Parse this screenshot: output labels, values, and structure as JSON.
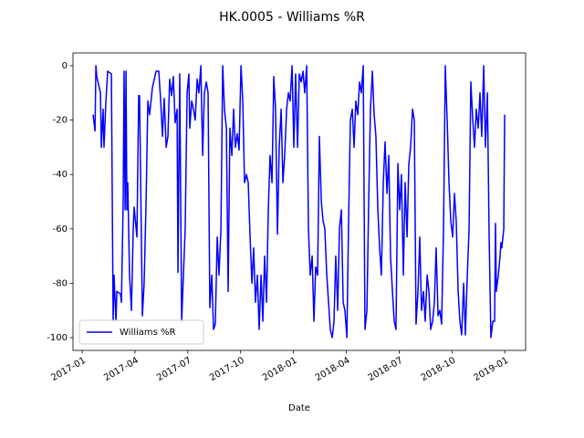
{
  "chart_data": {
    "type": "line",
    "title": "HK.0005 - Williams %R",
    "x_label": "Date",
    "x": [
      0.62,
      0.73,
      0.78,
      0.83,
      1.04,
      1.09,
      1.19,
      1.24,
      1.35,
      1.45,
      1.66,
      1.76,
      1.81,
      1.92,
      1.97,
      2.18,
      2.23,
      2.33,
      2.38,
      2.44,
      2.49,
      2.54,
      2.59,
      2.69,
      2.8,
      2.9,
      2.95,
      3.11,
      3.21,
      3.26,
      3.42,
      3.52,
      3.63,
      3.73,
      3.83,
      3.99,
      4.2,
      4.35,
      4.46,
      4.56,
      4.66,
      4.77,
      4.87,
      4.97,
      5.08,
      5.18,
      5.28,
      5.39,
      5.44,
      5.54,
      5.65,
      5.75,
      5.85,
      5.96,
      6.06,
      6.11,
      6.22,
      6.32,
      6.42,
      6.53,
      6.63,
      6.74,
      6.84,
      6.94,
      7.05,
      7.15,
      7.25,
      7.36,
      7.46,
      7.56,
      7.67,
      7.77,
      7.88,
      7.98,
      8.08,
      8.19,
      8.29,
      8.39,
      8.5,
      8.6,
      8.7,
      8.81,
      8.91,
      9.02,
      9.12,
      9.22,
      9.33,
      9.43,
      9.53,
      9.64,
      9.74,
      9.84,
      9.95,
      10.05,
      10.16,
      10.26,
      10.36,
      10.47,
      10.57,
      10.67,
      10.78,
      10.88,
      10.98,
      11.09,
      11.19,
      11.3,
      11.4,
      11.5,
      11.61,
      11.71,
      11.81,
      11.92,
      12.02,
      12.12,
      12.23,
      12.33,
      12.44,
      12.54,
      12.64,
      12.75,
      12.85,
      12.95,
      13.06,
      13.16,
      13.26,
      13.37,
      13.47,
      13.58,
      13.68,
      13.78,
      13.89,
      13.99,
      14.09,
      14.2,
      14.3,
      14.4,
      14.51,
      14.61,
      14.72,
      14.82,
      14.92,
      15.03,
      15.13,
      15.23,
      15.34,
      15.44,
      15.54,
      15.65,
      15.75,
      15.85,
      15.96,
      16.06,
      16.17,
      16.27,
      16.37,
      16.48,
      16.58,
      16.68,
      16.79,
      16.89,
      16.99,
      17.1,
      17.2,
      17.31,
      17.41,
      17.51,
      17.62,
      17.72,
      17.82,
      17.93,
      18.03,
      18.13,
      18.24,
      18.34,
      18.45,
      18.55,
      18.65,
      18.76,
      18.86,
      18.96,
      19.07,
      19.17,
      19.27,
      19.38,
      19.48,
      19.59,
      19.69,
      19.79,
      19.9,
      20.0,
      20.1,
      20.21,
      20.31,
      20.41,
      20.52,
      20.62,
      20.73,
      20.83,
      20.93,
      21.04,
      21.14,
      21.24,
      21.35,
      21.45,
      21.55,
      21.66,
      21.76,
      21.87,
      21.97,
      22.07,
      22.18,
      22.28,
      22.38,
      22.49,
      22.59,
      22.69,
      22.8,
      22.9,
      23.01,
      23.11,
      23.21,
      23.32,
      23.42,
      23.47,
      23.52,
      23.63,
      23.73,
      23.78,
      23.83,
      23.94,
      23.99
    ],
    "series": [
      {
        "name": "Williams %R",
        "color": "#0000ff",
        "values": [
          -18,
          -24,
          0,
          -4,
          -10,
          -30,
          -16,
          -30,
          -13,
          -2,
          -3,
          -94,
          -77,
          -94,
          -83,
          -84,
          -87,
          -50,
          -2,
          -53,
          -2,
          -53,
          -43,
          -77,
          -90,
          -60,
          -52,
          -63,
          -11,
          -11,
          -92,
          -80,
          -50,
          -13,
          -18,
          -8,
          -2,
          -2,
          -13,
          -26,
          -12,
          -30,
          -26,
          -5,
          -11,
          -4,
          -21,
          -16,
          -76,
          -3,
          -94,
          -77,
          -60,
          -10,
          -3,
          -23,
          -13,
          -16,
          -20,
          -5,
          -10,
          0,
          -33,
          -10,
          -6,
          -10,
          -89,
          -77,
          -97,
          -95,
          -63,
          -77,
          -60,
          0,
          -16,
          -23,
          -83,
          -23,
          -33,
          -16,
          -30,
          -25,
          -31,
          0,
          -13,
          -43,
          -40,
          -43,
          -62,
          -80,
          -67,
          -87,
          -77,
          -97,
          -77,
          -94,
          -70,
          -87,
          -53,
          -33,
          -43,
          -4,
          -16,
          -62,
          -30,
          -16,
          -43,
          -33,
          -16,
          -10,
          -13,
          0,
          -30,
          -3,
          -30,
          -3,
          -6,
          -2,
          -10,
          0,
          -60,
          -77,
          -70,
          -94,
          -74,
          -77,
          -26,
          -50,
          -57,
          -60,
          -77,
          -87,
          -97,
          -100,
          -94,
          -70,
          -90,
          -60,
          -53,
          -87,
          -90,
          -100,
          -57,
          -20,
          -16,
          -30,
          -13,
          -18,
          -6,
          -10,
          0,
          -97,
          -90,
          -50,
          -16,
          -2,
          -18,
          -26,
          -53,
          -67,
          -77,
          -43,
          -28,
          -47,
          -33,
          -70,
          -83,
          -94,
          -97,
          -36,
          -53,
          -40,
          -77,
          -43,
          -63,
          -36,
          -30,
          -16,
          -20,
          -95,
          -83,
          -63,
          -90,
          -83,
          -94,
          -77,
          -83,
          -97,
          -94,
          -87,
          -67,
          -92,
          -90,
          -95,
          -60,
          0,
          -21,
          -43,
          -57,
          -63,
          -47,
          -57,
          -83,
          -94,
          -99,
          -80,
          -99,
          -77,
          -60,
          -6,
          -20,
          -30,
          -16,
          -23,
          -10,
          -26,
          0,
          -30,
          -10,
          -63,
          -100,
          -94,
          -94,
          -58,
          -83,
          -77,
          -70,
          -65,
          -67,
          -60,
          -18
        ]
      }
    ],
    "xlim": [
      -0.52,
      25.18
    ],
    "xticks": [
      {
        "value": 0,
        "label": "2017-01"
      },
      {
        "value": 3,
        "label": "2017-04"
      },
      {
        "value": 6,
        "label": "2017-07"
      },
      {
        "value": 9,
        "label": "2017-10"
      },
      {
        "value": 12,
        "label": "2018-01"
      },
      {
        "value": 15,
        "label": "2018-04"
      },
      {
        "value": 18,
        "label": "2018-07"
      },
      {
        "value": 21,
        "label": "2018-10"
      },
      {
        "value": 24,
        "label": "2019-01"
      }
    ],
    "ylim": [
      -104.7,
      4.7
    ],
    "yticks": [
      0,
      -20,
      -40,
      -60,
      -80,
      -100
    ],
    "grid": false,
    "legend": "lower left"
  }
}
